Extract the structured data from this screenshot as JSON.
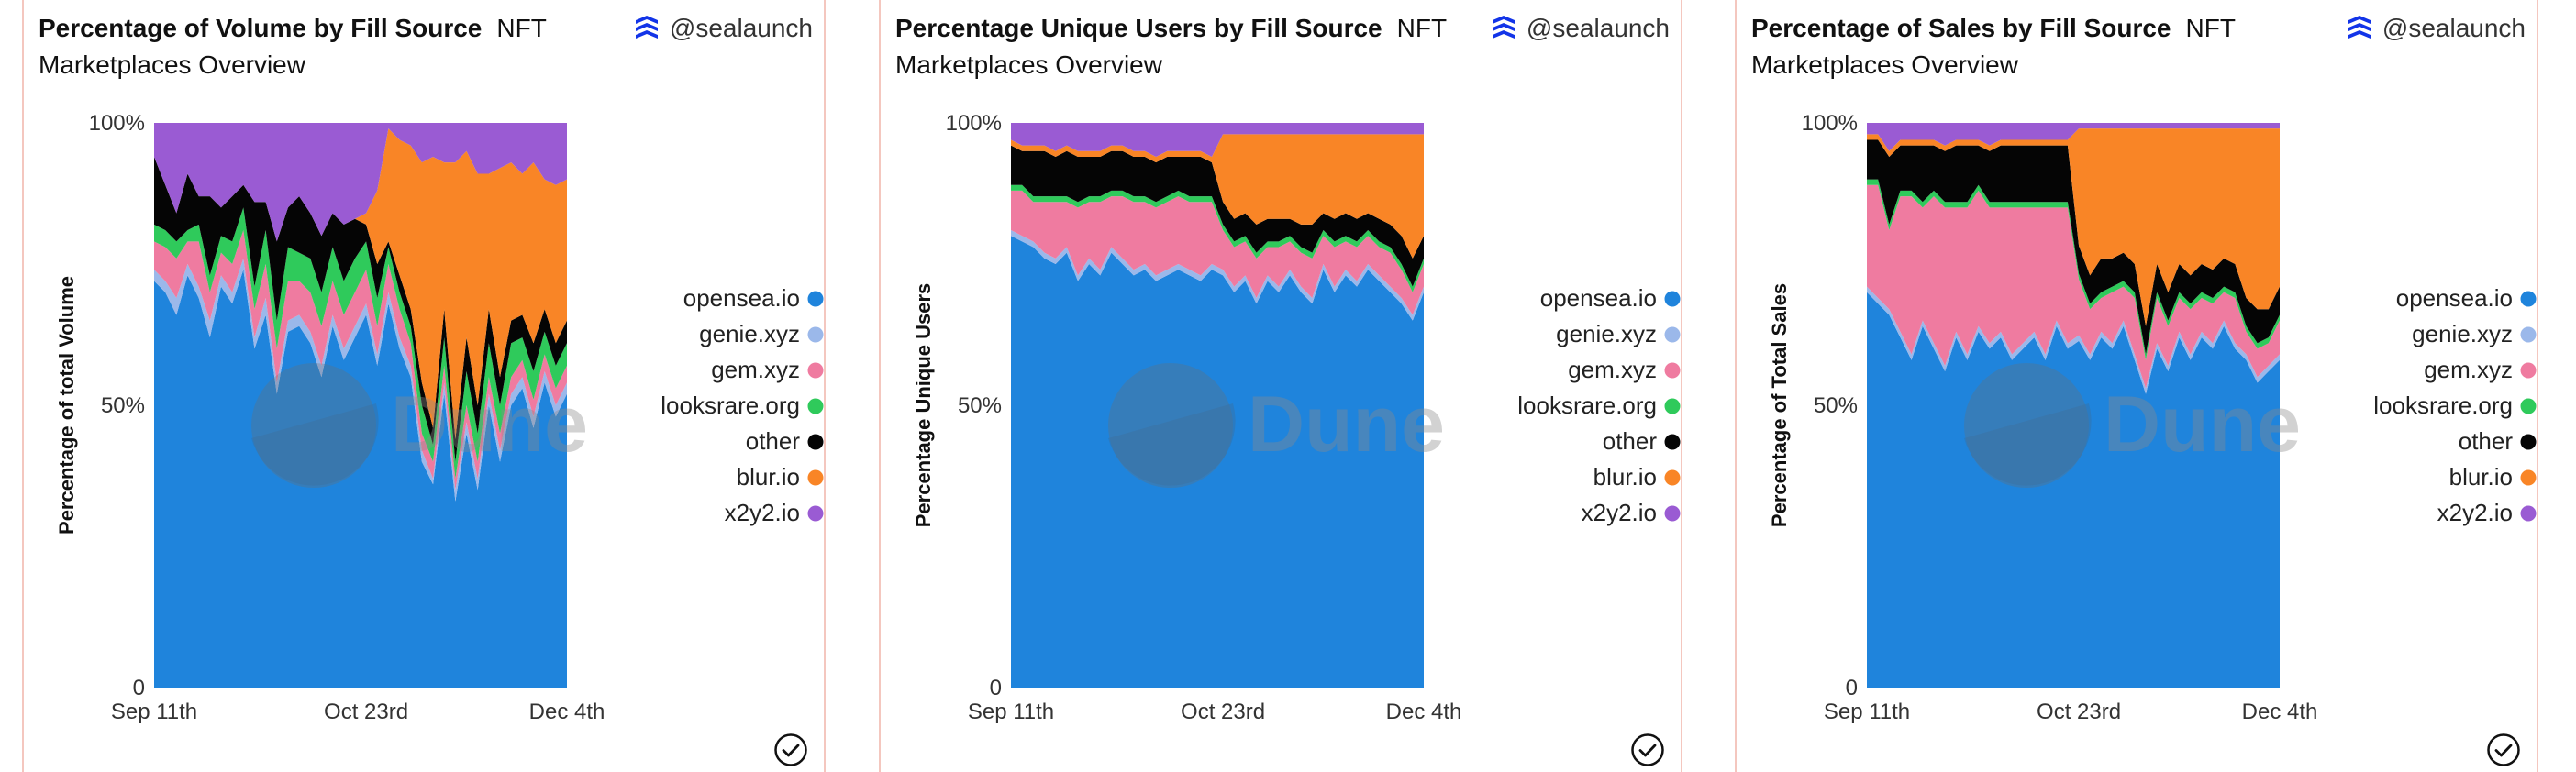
{
  "author": "@sealaunch",
  "colors": {
    "opensea.io": "#1f84dc",
    "genie.xyz": "#9bb8ea",
    "gem.xyz": "#ef7ba0",
    "looksrare.org": "#2fca5b",
    "other": "#050505",
    "blur.io": "#f98526",
    "x2y2.io": "#9a5bd3"
  },
  "chart_data": [
    {
      "type": "area",
      "stacked": "percent",
      "title": "Percentage of Volume by Fill Source",
      "subtitle": "NFT Marketplaces Overview",
      "ylabel": "Percentage of total Volume",
      "xlabel": "",
      "ylim": [
        0,
        100
      ],
      "y_ticks": [
        "0",
        "50%",
        "100%"
      ],
      "x_ticks": [
        "Sep 11th",
        "Oct 23rd",
        "Dec 4th"
      ],
      "legend": [
        "opensea.io",
        "genie.xyz",
        "gem.xyz",
        "looksrare.org",
        "other",
        "blur.io",
        "x2y2.io"
      ],
      "legend_position": "right",
      "series": [
        {
          "name": "opensea.io",
          "values": [
            72,
            70,
            66,
            73,
            69,
            62,
            71,
            68,
            74,
            60,
            66,
            52,
            63,
            64,
            61,
            55,
            64,
            58,
            62,
            66,
            57,
            68,
            60,
            55,
            40,
            36,
            52,
            33,
            45,
            35,
            50,
            40,
            50,
            53,
            46,
            54,
            48,
            52
          ]
        },
        {
          "name": "genie.xyz",
          "values": [
            2,
            2,
            3,
            2,
            2,
            3,
            2,
            2,
            2,
            2,
            3,
            2,
            2,
            2,
            2,
            2,
            2,
            2,
            2,
            2,
            2,
            2,
            2,
            2,
            2,
            1,
            2,
            2,
            2,
            2,
            2,
            2,
            2,
            2,
            2,
            2,
            2,
            2
          ]
        },
        {
          "name": "gem.xyz",
          "values": [
            5,
            6,
            7,
            4,
            8,
            5,
            4,
            5,
            5,
            5,
            6,
            6,
            7,
            6,
            7,
            7,
            6,
            6,
            6,
            6,
            5,
            5,
            5,
            4,
            3,
            3,
            3,
            2,
            3,
            3,
            3,
            3,
            3,
            3,
            3,
            3,
            3,
            3
          ]
        },
        {
          "name": "looksrare.org",
          "values": [
            3,
            3,
            3,
            2,
            3,
            3,
            3,
            4,
            4,
            4,
            6,
            5,
            6,
            5,
            6,
            6,
            6,
            6,
            6,
            5,
            5,
            3,
            3,
            3,
            5,
            3,
            5,
            3,
            6,
            5,
            6,
            5,
            6,
            4,
            5,
            4,
            4,
            4
          ]
        },
        {
          "name": "other",
          "values": [
            12,
            8,
            5,
            10,
            5,
            14,
            5,
            8,
            4,
            15,
            5,
            14,
            7,
            10,
            8,
            10,
            6,
            10,
            7,
            3,
            6,
            1,
            3,
            3,
            4,
            3,
            5,
            4,
            6,
            5,
            6,
            5,
            4,
            4,
            5,
            4,
            4,
            4
          ]
        },
        {
          "name": "blur.io",
          "values": [
            0,
            0,
            0,
            0,
            0,
            0,
            0,
            0,
            0,
            0,
            0,
            0,
            0,
            0,
            0,
            0,
            0,
            0,
            0,
            2,
            13,
            20,
            24,
            29,
            39,
            48,
            26,
            49,
            33,
            41,
            24,
            37,
            28,
            25,
            32,
            23,
            28,
            25
          ]
        },
        {
          "name": "x2y2.io",
          "values": [
            6,
            11,
            16,
            9,
            13,
            13,
            15,
            13,
            11,
            14,
            14,
            21,
            15,
            13,
            16,
            20,
            16,
            18,
            17,
            16,
            12,
            1,
            3,
            4,
            7,
            6,
            7,
            7,
            5,
            9,
            9,
            8,
            7,
            9,
            7,
            10,
            11,
            10
          ]
        }
      ]
    },
    {
      "type": "area",
      "stacked": "percent",
      "title": "Percentage Unique Users by Fill Source",
      "subtitle": "NFT Marketplaces Overview",
      "ylabel": "Percentage Unique Users",
      "xlabel": "",
      "ylim": [
        0,
        100
      ],
      "y_ticks": [
        "0",
        "50%",
        "100%"
      ],
      "x_ticks": [
        "Sep 11th",
        "Oct 23rd",
        "Dec 4th"
      ],
      "legend": [
        "opensea.io",
        "genie.xyz",
        "gem.xyz",
        "looksrare.org",
        "other",
        "blur.io",
        "x2y2.io"
      ],
      "legend_position": "right",
      "series": [
        {
          "name": "opensea.io",
          "values": [
            80,
            79,
            78,
            76,
            75,
            77,
            72,
            75,
            73,
            77,
            75,
            73,
            74,
            72,
            73,
            74,
            73,
            72,
            74,
            73,
            70,
            72,
            68,
            72,
            70,
            73,
            70,
            68,
            74,
            70,
            73,
            71,
            74,
            72,
            70,
            68,
            65,
            70
          ]
        },
        {
          "name": "genie.xyz",
          "values": [
            1,
            1,
            1,
            1,
            1,
            1,
            1,
            1,
            1,
            1,
            1,
            1,
            1,
            1,
            1,
            1,
            1,
            1,
            1,
            1,
            1,
            1,
            1,
            1,
            1,
            1,
            1,
            1,
            1,
            1,
            1,
            1,
            1,
            1,
            1,
            1,
            1,
            1
          ]
        },
        {
          "name": "gem.xyz",
          "values": [
            7,
            8,
            7,
            9,
            10,
            8,
            12,
            10,
            12,
            9,
            11,
            12,
            11,
            12,
            12,
            12,
            12,
            13,
            11,
            7,
            7,
            6,
            7,
            5,
            7,
            5,
            6,
            7,
            5,
            7,
            5,
            6,
            5,
            5,
            6,
            5,
            4,
            4
          ]
        },
        {
          "name": "looksrare.org",
          "values": [
            1,
            1,
            1,
            1,
            1,
            1,
            1,
            1,
            1,
            1,
            1,
            1,
            1,
            1,
            1,
            1,
            1,
            1,
            1,
            1,
            1,
            1,
            1,
            1,
            1,
            1,
            1,
            1,
            1,
            1,
            1,
            1,
            1,
            1,
            1,
            1,
            1,
            1
          ]
        },
        {
          "name": "other",
          "values": [
            7,
            6,
            8,
            8,
            7,
            8,
            8,
            7,
            7,
            7,
            7,
            7,
            7,
            7,
            7,
            6,
            7,
            7,
            6,
            4,
            4,
            4,
            5,
            4,
            4,
            3,
            4,
            5,
            3,
            4,
            4,
            4,
            3,
            4,
            4,
            5,
            5,
            4
          ]
        },
        {
          "name": "blur.io",
          "values": [
            1,
            1,
            1,
            1,
            1,
            1,
            1,
            1,
            1,
            1,
            1,
            1,
            1,
            1,
            1,
            1,
            1,
            1,
            1,
            12,
            15,
            14,
            16,
            15,
            15,
            15,
            16,
            16,
            14,
            15,
            14,
            15,
            14,
            15,
            16,
            18,
            22,
            18
          ]
        },
        {
          "name": "x2y2.io",
          "values": [
            3,
            4,
            4,
            4,
            5,
            4,
            5,
            5,
            5,
            4,
            4,
            5,
            5,
            6,
            5,
            5,
            5,
            5,
            6,
            2,
            2,
            2,
            2,
            2,
            2,
            2,
            2,
            2,
            2,
            2,
            2,
            2,
            2,
            2,
            2,
            2,
            2,
            2
          ]
        }
      ]
    },
    {
      "type": "area",
      "stacked": "percent",
      "title": "Percentage of Sales by Fill Source",
      "subtitle": "NFT Marketplaces Overview",
      "ylabel": "Percentage of Total Sales",
      "xlabel": "",
      "ylim": [
        0,
        100
      ],
      "y_ticks": [
        "0",
        "50%",
        "100%"
      ],
      "x_ticks": [
        "Sep 11th",
        "Oct 23rd",
        "Dec 4th"
      ],
      "legend": [
        "opensea.io",
        "genie.xyz",
        "gem.xyz",
        "looksrare.org",
        "other",
        "blur.io",
        "x2y2.io"
      ],
      "legend_position": "right",
      "series": [
        {
          "name": "opensea.io",
          "values": [
            70,
            68,
            66,
            62,
            58,
            64,
            60,
            56,
            62,
            58,
            63,
            60,
            62,
            58,
            60,
            62,
            58,
            64,
            60,
            62,
            58,
            62,
            60,
            64,
            58,
            52,
            60,
            56,
            62,
            58,
            62,
            60,
            64,
            60,
            58,
            54,
            56,
            58
          ]
        },
        {
          "name": "genie.xyz",
          "values": [
            1,
            1,
            1,
            1,
            1,
            1,
            1,
            1,
            1,
            1,
            1,
            1,
            1,
            1,
            1,
            1,
            1,
            1,
            1,
            1,
            1,
            1,
            1,
            1,
            1,
            1,
            1,
            1,
            1,
            1,
            1,
            1,
            1,
            1,
            1,
            1,
            1,
            1
          ]
        },
        {
          "name": "gem.xyz",
          "values": [
            18,
            20,
            14,
            24,
            28,
            20,
            26,
            28,
            22,
            26,
            24,
            24,
            22,
            26,
            24,
            22,
            26,
            20,
            24,
            10,
            8,
            6,
            9,
            6,
            10,
            5,
            8,
            7,
            6,
            8,
            6,
            7,
            5,
            8,
            4,
            5,
            4,
            6
          ]
        },
        {
          "name": "looksrare.org",
          "values": [
            1,
            1,
            1,
            1,
            1,
            1,
            1,
            1,
            1,
            1,
            1,
            1,
            1,
            1,
            1,
            1,
            1,
            1,
            1,
            1,
            1,
            1,
            1,
            1,
            1,
            1,
            1,
            1,
            1,
            1,
            1,
            1,
            1,
            1,
            1,
            1,
            1,
            1
          ]
        },
        {
          "name": "other",
          "values": [
            7,
            7,
            12,
            8,
            8,
            10,
            8,
            9,
            10,
            10,
            7,
            9,
            10,
            10,
            10,
            10,
            10,
            10,
            10,
            5,
            5,
            6,
            5,
            5,
            5,
            5,
            5,
            5,
            5,
            5,
            5,
            5,
            5,
            5,
            5,
            6,
            5,
            5
          ]
        },
        {
          "name": "blur.io",
          "values": [
            1,
            1,
            1,
            1,
            1,
            1,
            1,
            1,
            1,
            1,
            1,
            1,
            1,
            1,
            1,
            1,
            1,
            1,
            1,
            21,
            26,
            23,
            23,
            22,
            24,
            35,
            24,
            29,
            24,
            26,
            24,
            25,
            23,
            24,
            30,
            32,
            32,
            28
          ]
        },
        {
          "name": "x2y2.io",
          "values": [
            2,
            2,
            5,
            3,
            3,
            3,
            3,
            4,
            3,
            3,
            3,
            4,
            3,
            3,
            3,
            3,
            3,
            3,
            3,
            1,
            1,
            1,
            1,
            1,
            1,
            1,
            1,
            1,
            1,
            1,
            1,
            1,
            1,
            1,
            1,
            1,
            1,
            1
          ]
        }
      ]
    }
  ]
}
